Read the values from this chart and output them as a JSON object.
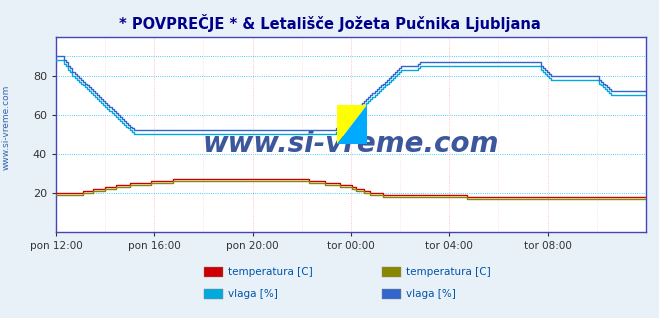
{
  "title": "* POVPREČJE * & Letališče Jožeta Pučnika Ljubljana",
  "title_color": "#00008B",
  "bg_color": "#E8F0F8",
  "plot_bg": "#FFFFFF",
  "grid_color_h": "#00BFFF",
  "grid_color_v": "#FFB0B0",
  "ylim": [
    0,
    100
  ],
  "yticks": [
    20,
    40,
    60,
    80
  ],
  "xlabel_ticks": [
    "pon 12:00",
    "pon 16:00",
    "pon 20:00",
    "tor 00:00",
    "tor 04:00",
    "tor 08:00"
  ],
  "n_points": 288,
  "watermark": "www.si-vreme.com",
  "watermark_color": "#1a3a8a",
  "legend": [
    {
      "label": "temperatura [C]",
      "color": "#CC0000"
    },
    {
      "label": "vlaga [%]",
      "color": "#00AADD"
    },
    {
      "label": "temperatura [C]",
      "color": "#888800"
    },
    {
      "label": "vlaga [%]",
      "color": "#3366CC"
    }
  ],
  "series1_hum": [
    88,
    88,
    88,
    88,
    86,
    85,
    83,
    82,
    80,
    79,
    78,
    77,
    76,
    75,
    74,
    73,
    72,
    71,
    70,
    69,
    68,
    67,
    66,
    65,
    64,
    63,
    62,
    61,
    60,
    59,
    58,
    57,
    56,
    55,
    54,
    53,
    52,
    51,
    50,
    50,
    50,
    50,
    50,
    50,
    50,
    50,
    50,
    50,
    50,
    50,
    50,
    50,
    50,
    50,
    50,
    50,
    50,
    50,
    50,
    50,
    50,
    50,
    50,
    50,
    50,
    50,
    50,
    50,
    50,
    50,
    50,
    50,
    50,
    50,
    50,
    50,
    50,
    50,
    50,
    50,
    50,
    50,
    50,
    50,
    50,
    50,
    50,
    50,
    50,
    50,
    50,
    50,
    50,
    50,
    50,
    50,
    50,
    50,
    50,
    50,
    50,
    50,
    50,
    50,
    50,
    50,
    50,
    50,
    50,
    50,
    50,
    50,
    50,
    50,
    50,
    50,
    50,
    50,
    50,
    50,
    50,
    50,
    50,
    50,
    50,
    50,
    50,
    50,
    50,
    50,
    50,
    50,
    50,
    50,
    50,
    50,
    51,
    52,
    53,
    54,
    55,
    56,
    57,
    58,
    59,
    60,
    61,
    62,
    63,
    64,
    65,
    66,
    67,
    68,
    69,
    70,
    71,
    72,
    73,
    74,
    75,
    76,
    77,
    78,
    79,
    80,
    81,
    82,
    83,
    83,
    83,
    83,
    83,
    83,
    83,
    83,
    84,
    85,
    85,
    85,
    85,
    85,
    85,
    85,
    85,
    85,
    85,
    85,
    85,
    85,
    85,
    85,
    85,
    85,
    85,
    85,
    85,
    85,
    85,
    85,
    85,
    85,
    85,
    85,
    85,
    85,
    85,
    85,
    85,
    85,
    85,
    85,
    85,
    85,
    85,
    85,
    85,
    85,
    85,
    85,
    85,
    85,
    85,
    85,
    85,
    85,
    85,
    85,
    85,
    85,
    85,
    85,
    85,
    85,
    85,
    85,
    83,
    82,
    81,
    80,
    79,
    78,
    78,
    78,
    78,
    78,
    78,
    78,
    78,
    78,
    78,
    78,
    78,
    78,
    78,
    78,
    78,
    78,
    78,
    78,
    78,
    78,
    78,
    78,
    76,
    75,
    74,
    73,
    72,
    71,
    70,
    70,
    70,
    70,
    70,
    70,
    70,
    70,
    70,
    70,
    70,
    70,
    70,
    70,
    70,
    70,
    70,
    70
  ],
  "series2_hum": [
    90,
    90,
    90,
    90,
    88,
    87,
    85,
    84,
    82,
    81,
    80,
    79,
    78,
    77,
    76,
    75,
    74,
    73,
    72,
    71,
    70,
    69,
    68,
    67,
    66,
    65,
    64,
    63,
    62,
    61,
    60,
    59,
    58,
    57,
    56,
    55,
    54,
    53,
    52,
    52,
    52,
    52,
    52,
    52,
    52,
    52,
    52,
    52,
    52,
    52,
    52,
    52,
    52,
    52,
    52,
    52,
    52,
    52,
    52,
    52,
    52,
    52,
    52,
    52,
    52,
    52,
    52,
    52,
    52,
    52,
    52,
    52,
    52,
    52,
    52,
    52,
    52,
    52,
    52,
    52,
    52,
    52,
    52,
    52,
    52,
    52,
    52,
    52,
    52,
    52,
    52,
    52,
    52,
    52,
    52,
    52,
    52,
    52,
    52,
    52,
    52,
    52,
    52,
    52,
    52,
    52,
    52,
    52,
    52,
    52,
    52,
    52,
    52,
    52,
    52,
    52,
    52,
    52,
    52,
    52,
    52,
    52,
    52,
    52,
    52,
    52,
    52,
    52,
    52,
    52,
    52,
    52,
    52,
    52,
    52,
    52,
    53,
    54,
    55,
    56,
    57,
    58,
    59,
    60,
    61,
    62,
    63,
    64,
    65,
    66,
    67,
    68,
    69,
    70,
    71,
    72,
    73,
    74,
    75,
    76,
    77,
    78,
    79,
    80,
    81,
    82,
    83,
    84,
    85,
    85,
    85,
    85,
    85,
    85,
    85,
    85,
    86,
    87,
    87,
    87,
    87,
    87,
    87,
    87,
    87,
    87,
    87,
    87,
    87,
    87,
    87,
    87,
    87,
    87,
    87,
    87,
    87,
    87,
    87,
    87,
    87,
    87,
    87,
    87,
    87,
    87,
    87,
    87,
    87,
    87,
    87,
    87,
    87,
    87,
    87,
    87,
    87,
    87,
    87,
    87,
    87,
    87,
    87,
    87,
    87,
    87,
    87,
    87,
    87,
    87,
    87,
    87,
    87,
    87,
    87,
    87,
    85,
    84,
    83,
    82,
    81,
    80,
    80,
    80,
    80,
    80,
    80,
    80,
    80,
    80,
    80,
    80,
    80,
    80,
    80,
    80,
    80,
    80,
    80,
    80,
    80,
    80,
    80,
    80,
    78,
    77,
    76,
    75,
    74,
    73,
    72,
    72,
    72,
    72,
    72,
    72,
    72,
    72,
    72,
    72,
    72,
    72,
    72,
    72,
    72,
    72,
    72,
    72
  ],
  "series1_temp": [
    20,
    20,
    20,
    20,
    20,
    20,
    20,
    20,
    20,
    20,
    20,
    20,
    20,
    21,
    21,
    21,
    21,
    21,
    22,
    22,
    22,
    22,
    22,
    22,
    23,
    23,
    23,
    23,
    23,
    24,
    24,
    24,
    24,
    24,
    24,
    24,
    25,
    25,
    25,
    25,
    25,
    25,
    25,
    25,
    25,
    25,
    26,
    26,
    26,
    26,
    26,
    26,
    26,
    26,
    26,
    26,
    26,
    27,
    27,
    27,
    27,
    27,
    27,
    27,
    27,
    27,
    27,
    27,
    27,
    27,
    27,
    27,
    27,
    27,
    27,
    27,
    27,
    27,
    27,
    27,
    27,
    27,
    27,
    27,
    27,
    27,
    27,
    27,
    27,
    27,
    27,
    27,
    27,
    27,
    27,
    27,
    27,
    27,
    27,
    27,
    27,
    27,
    27,
    27,
    27,
    27,
    27,
    27,
    27,
    27,
    27,
    27,
    27,
    27,
    27,
    27,
    27,
    27,
    27,
    27,
    27,
    27,
    27,
    26,
    26,
    26,
    26,
    26,
    26,
    26,
    26,
    25,
    25,
    25,
    25,
    25,
    25,
    25,
    24,
    24,
    24,
    24,
    24,
    24,
    23,
    23,
    22,
    22,
    22,
    22,
    21,
    21,
    21,
    20,
    20,
    20,
    20,
    20,
    20,
    19,
    19,
    19,
    19,
    19,
    19,
    19,
    19,
    19,
    19,
    19,
    19,
    19,
    19,
    19,
    19,
    19,
    19,
    19,
    19,
    19,
    19,
    19,
    19,
    19,
    19,
    19,
    19,
    19,
    19,
    19,
    19,
    19,
    19,
    19,
    19,
    19,
    19,
    19,
    19,
    19,
    18,
    18,
    18,
    18,
    18,
    18,
    18,
    18,
    18,
    18,
    18,
    18,
    18,
    18,
    18,
    18,
    18,
    18,
    18,
    18,
    18,
    18,
    18,
    18,
    18,
    18,
    18,
    18,
    18,
    18,
    18,
    18,
    18,
    18,
    18,
    18,
    18,
    18,
    18,
    18,
    18,
    18,
    18,
    18,
    18,
    18,
    18,
    18,
    18,
    18,
    18,
    18,
    18,
    18,
    18,
    18,
    18,
    18,
    18,
    18,
    18,
    18,
    18,
    18,
    18,
    18,
    18,
    18,
    18,
    18,
    18,
    18,
    18,
    18,
    18,
    18,
    18,
    18,
    18,
    18,
    18,
    18,
    18,
    18,
    18,
    18,
    18,
    18
  ],
  "series2_temp": [
    19,
    19,
    19,
    19,
    19,
    19,
    19,
    19,
    19,
    19,
    19,
    19,
    19,
    20,
    20,
    20,
    20,
    20,
    21,
    21,
    21,
    21,
    21,
    21,
    22,
    22,
    22,
    22,
    22,
    23,
    23,
    23,
    23,
    23,
    23,
    23,
    24,
    24,
    24,
    24,
    24,
    24,
    24,
    24,
    24,
    24,
    25,
    25,
    25,
    25,
    25,
    25,
    25,
    25,
    25,
    25,
    25,
    26,
    26,
    26,
    26,
    26,
    26,
    26,
    26,
    26,
    26,
    26,
    26,
    26,
    26,
    26,
    26,
    26,
    26,
    26,
    26,
    26,
    26,
    26,
    26,
    26,
    26,
    26,
    26,
    26,
    26,
    26,
    26,
    26,
    26,
    26,
    26,
    26,
    26,
    26,
    26,
    26,
    26,
    26,
    26,
    26,
    26,
    26,
    26,
    26,
    26,
    26,
    26,
    26,
    26,
    26,
    26,
    26,
    26,
    26,
    26,
    26,
    26,
    26,
    26,
    26,
    26,
    25,
    25,
    25,
    25,
    25,
    25,
    25,
    25,
    24,
    24,
    24,
    24,
    24,
    24,
    24,
    23,
    23,
    23,
    23,
    23,
    23,
    22,
    22,
    21,
    21,
    21,
    21,
    20,
    20,
    20,
    19,
    19,
    19,
    19,
    19,
    19,
    18,
    18,
    18,
    18,
    18,
    18,
    18,
    18,
    18,
    18,
    18,
    18,
    18,
    18,
    18,
    18,
    18,
    18,
    18,
    18,
    18,
    18,
    18,
    18,
    18,
    18,
    18,
    18,
    18,
    18,
    18,
    18,
    18,
    18,
    18,
    18,
    18,
    18,
    18,
    18,
    18,
    17,
    17,
    17,
    17,
    17,
    17,
    17,
    17,
    17,
    17,
    17,
    17,
    17,
    17,
    17,
    17,
    17,
    17,
    17,
    17,
    17,
    17,
    17,
    17,
    17,
    17,
    17,
    17,
    17,
    17,
    17,
    17,
    17,
    17,
    17,
    17,
    17,
    17,
    17,
    17,
    17,
    17,
    17,
    17,
    17,
    17,
    17,
    17,
    17,
    17,
    17,
    17,
    17,
    17,
    17,
    17,
    17,
    17,
    17,
    17,
    17,
    17,
    17,
    17,
    17,
    17,
    17,
    17,
    17,
    17,
    17,
    17,
    17,
    17,
    17,
    17,
    17,
    17,
    17,
    17,
    17,
    17,
    17,
    17,
    17,
    17,
    17,
    17
  ]
}
